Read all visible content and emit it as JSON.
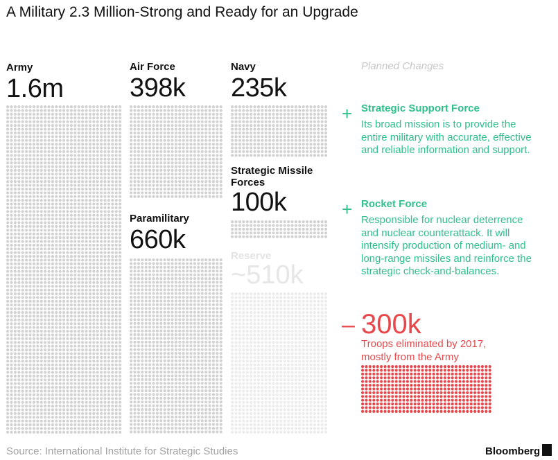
{
  "title": "A Military 2.3 Million-Strong and Ready for an Upgrade",
  "planned_changes_heading": "Planned Changes",
  "changes": [
    {
      "sign": "+",
      "title": "Strategic Support Force",
      "lines": [
        "Its broad mission is to provide the",
        "entire military with accurate, effective",
        "and reliable information and support."
      ]
    },
    {
      "sign": "+",
      "title": "Rocket Force",
      "lines": [
        "Responsible for nuclear deterrence",
        "and nuclear counterattack. It will",
        "intensify production of medium- and",
        "long-range missiles and reinforce the",
        "strategic check-and-balances."
      ]
    }
  ],
  "reduction": {
    "sign": "–",
    "value": "300k",
    "lines": [
      "Troops eliminated by 2017,",
      "mostly from the Army"
    ]
  },
  "source": "Source: International Institute for Strategic Studies",
  "brand": "Bloomberg",
  "colors": {
    "dot_gray": "#d2d2d2",
    "dot_reserve": "#ececec",
    "accent_green": "#2fc08b",
    "accent_red": "#e8484c"
  },
  "chart_data": {
    "type": "unit",
    "title": "A Military 2.3 Million-Strong and Ready for an Upgrade",
    "categories": [
      "Army",
      "Air Force",
      "Navy",
      "Strategic Missile Forces",
      "Paramilitary",
      "Reserve"
    ],
    "values": [
      1600000,
      398000,
      235000,
      100000,
      660000,
      510000
    ],
    "value_labels": [
      "1.6m",
      "398k",
      "235k",
      "100k",
      "660k",
      "~510k"
    ],
    "reduction": {
      "label": "300k",
      "value": 300000
    }
  }
}
